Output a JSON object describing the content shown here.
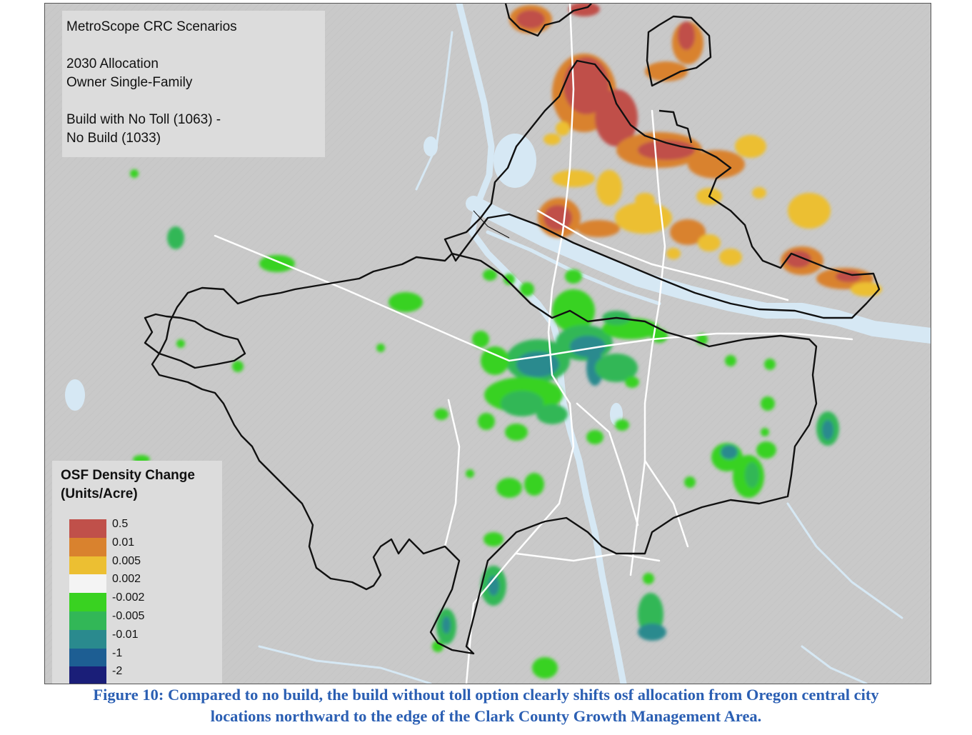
{
  "title_box": {
    "line1": "MetroScope CRC Scenarios",
    "line2": "2030 Allocation",
    "line3": "Owner Single-Family",
    "line4": "Build with No Toll (1063) -",
    "line5": "No Build (1033)"
  },
  "legend": {
    "title_line1": "OSF Density Change",
    "title_line2": "(Units/Acre)",
    "classes": [
      {
        "label": "0.5",
        "color": "#c0504a"
      },
      {
        "label": "0.01",
        "color": "#d9822e"
      },
      {
        "label": "0.005",
        "color": "#ecbf32"
      },
      {
        "label": "0.002",
        "color": "#f4f4f4"
      },
      {
        "label": "-0.002",
        "color": "#39d221"
      },
      {
        "label": "-0.005",
        "color": "#32b757"
      },
      {
        "label": "-0.01",
        "color": "#2a8a8e"
      },
      {
        "label": "-1",
        "color": "#1d5e93"
      },
      {
        "label": "-2",
        "color": "#1a1e78"
      }
    ]
  },
  "caption": {
    "line1": "Figure 10: Compared to no build, the build without toll option clearly shifts osf allocation from Oregon central city",
    "line2": "locations northward to the edge of the Clark County Growth Management Area."
  },
  "colors": {
    "terrain": "#c9c9c9",
    "water": "#d6e8f4",
    "boundary": "#111111",
    "roads": "#ffffff"
  }
}
